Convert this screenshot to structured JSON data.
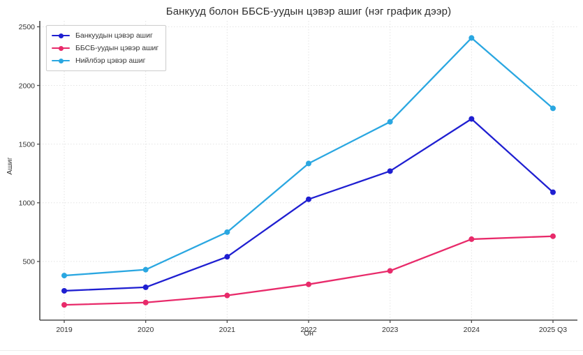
{
  "chart_data": {
    "type": "line",
    "title": "Банкууд болон ББСБ-уудын цэвэр ашиг (нэг график дээр)",
    "xlabel": "Он",
    "ylabel": "Ашиг",
    "categories": [
      "2019",
      "2020",
      "2021",
      "2022",
      "2023",
      "2024",
      "2025 Q3"
    ],
    "series": [
      {
        "name": "Банкуудын цэвэр ашиг",
        "color": "#1f1fd1",
        "values": [
          250,
          280,
          540,
          1030,
          1270,
          1715,
          1090
        ]
      },
      {
        "name": "ББСБ-уудын цэвэр ашиг",
        "color": "#e82a6a",
        "values": [
          130,
          150,
          210,
          305,
          420,
          690,
          715
        ]
      },
      {
        "name": "Нийлбэр цэвэр ашиг",
        "color": "#2aa7e1",
        "values": [
          380,
          430,
          750,
          1335,
          1690,
          2405,
          1805
        ]
      }
    ],
    "yticks": [
      500,
      1000,
      1500,
      2000,
      2500
    ],
    "ylim": [
      0,
      2550
    ],
    "grid": true,
    "legend_position": "upper left",
    "colors": {
      "grid": "#e3e3e3",
      "spine": "#4d4d4d",
      "tick_text": "#333333",
      "title_text": "#2d2d2d"
    }
  }
}
